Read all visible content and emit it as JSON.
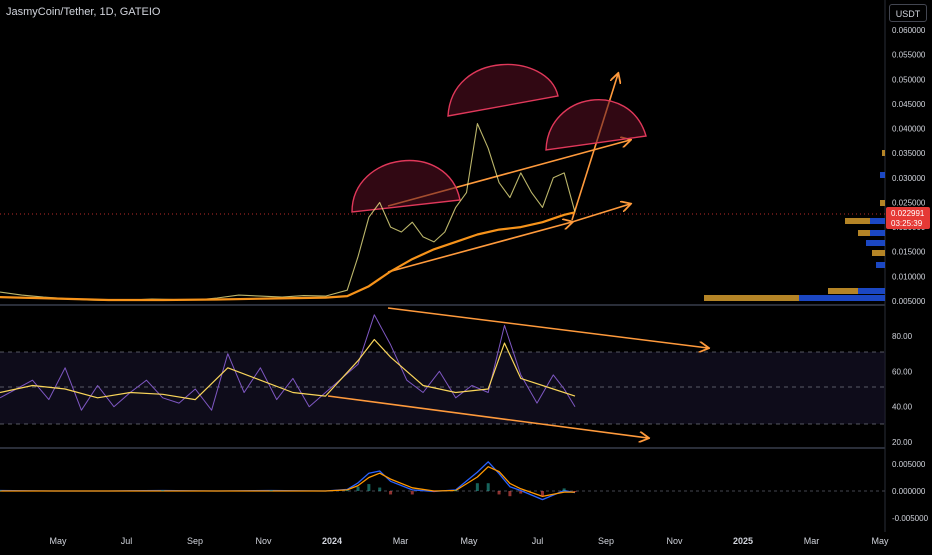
{
  "header": {
    "symbol_title": "JasmyCoin/Tether, 1D, GATEIO",
    "currency_button": "USDT"
  },
  "price_badge": {
    "price": "0.022991",
    "countdown": "03:25:39"
  },
  "colors": {
    "background": "#000000",
    "price_line": "#f9f18e",
    "ma_line": "#f7931a",
    "annotation_orange": "#ff9a3c",
    "head_arc": "#e0385a",
    "rsi_line": "#7e57c2",
    "rsi_signal": "#f9d55a",
    "macd_blue": "#2962ff",
    "macd_orange": "#ff9800",
    "price_badge": "#e53935",
    "volume_profile_gold": "#c8922a",
    "volume_profile_blue": "#1e4fd8"
  },
  "chart_data": [
    {
      "type": "line",
      "name": "price-pane",
      "y_ticks": [
        "0.060000",
        "0.055000",
        "0.050000",
        "0.045000",
        "0.040000",
        "0.035000",
        "0.030000",
        "0.025000",
        "0.020000",
        "0.015000",
        "0.010000",
        "0.005000"
      ],
      "ylim": [
        0.005,
        0.062
      ],
      "series": [
        {
          "role": "close",
          "x": [
            0,
            4,
            8,
            12,
            16,
            20,
            24,
            28,
            32,
            36,
            40,
            44,
            48,
            52,
            56,
            60,
            64,
            66,
            68,
            70,
            72,
            74,
            76,
            78,
            80,
            82,
            84,
            86,
            88,
            90,
            92,
            94,
            96,
            98,
            100,
            102,
            104,
            106
          ],
          "y": [
            0.0068,
            0.0062,
            0.0058,
            0.0055,
            0.0052,
            0.0051,
            0.0052,
            0.0054,
            0.0053,
            0.0052,
            0.0056,
            0.0062,
            0.006,
            0.0058,
            0.0061,
            0.006,
            0.0072,
            0.014,
            0.022,
            0.025,
            0.02,
            0.019,
            0.021,
            0.018,
            0.017,
            0.019,
            0.024,
            0.027,
            0.041,
            0.036,
            0.029,
            0.026,
            0.031,
            0.027,
            0.024,
            0.03,
            0.031,
            0.023
          ]
        },
        {
          "role": "moving-average",
          "x": [
            0,
            10,
            20,
            30,
            40,
            50,
            60,
            64,
            68,
            72,
            76,
            80,
            84,
            88,
            92,
            96,
            100,
            104,
            106
          ],
          "y": [
            0.0058,
            0.0055,
            0.0052,
            0.0052,
            0.0053,
            0.0055,
            0.0057,
            0.006,
            0.008,
            0.011,
            0.0135,
            0.0155,
            0.017,
            0.0185,
            0.0195,
            0.02,
            0.021,
            0.0225,
            0.023
          ]
        }
      ]
    },
    {
      "type": "line",
      "name": "rsi-pane",
      "y_ticks": [
        "80.00",
        "60.00",
        "40.00",
        "20.00"
      ],
      "ylim": [
        18,
        96
      ],
      "series": [
        {
          "role": "rsi",
          "x": [
            0,
            3,
            6,
            9,
            12,
            15,
            18,
            21,
            24,
            27,
            30,
            33,
            36,
            39,
            42,
            45,
            48,
            51,
            54,
            57,
            60,
            63,
            66,
            69,
            72,
            75,
            78,
            81,
            84,
            87,
            90,
            93,
            96,
            99,
            102,
            104,
            106
          ],
          "y": [
            45,
            50,
            55,
            44,
            62,
            38,
            52,
            40,
            48,
            55,
            45,
            42,
            50,
            38,
            70,
            48,
            62,
            44,
            56,
            40,
            48,
            56,
            64,
            92,
            75,
            55,
            48,
            60,
            45,
            52,
            48,
            86,
            58,
            42,
            58,
            50,
            40
          ]
        },
        {
          "role": "rsi-signal",
          "x": [
            0,
            6,
            12,
            18,
            24,
            30,
            36,
            42,
            48,
            54,
            60,
            66,
            69,
            72,
            78,
            84,
            90,
            93,
            96,
            102,
            106
          ],
          "y": [
            48,
            52,
            50,
            45,
            48,
            47,
            44,
            62,
            55,
            48,
            46,
            66,
            78,
            68,
            52,
            48,
            50,
            76,
            56,
            50,
            46
          ]
        }
      ]
    },
    {
      "type": "line",
      "name": "macd-pane",
      "y_ticks": [
        "0.005000",
        "0.000000",
        "-0.005000"
      ],
      "ylim": [
        -0.0068,
        0.0068
      ],
      "series": [
        {
          "role": "macd",
          "x": [
            0,
            10,
            20,
            30,
            40,
            50,
            60,
            64,
            66,
            68,
            70,
            72,
            76,
            80,
            84,
            88,
            90,
            92,
            94,
            96,
            100,
            104,
            106
          ],
          "y": [
            0.0001,
            0,
            0,
            0.0001,
            0,
            0.0001,
            0,
            0.0003,
            0.0015,
            0.0033,
            0.0037,
            0.0018,
            0.0002,
            -0.0001,
            0.0002,
            0.0035,
            0.0054,
            0.0032,
            0.0008,
            0.0001,
            -0.0016,
            0.0001,
            -0.0003
          ]
        },
        {
          "role": "signal",
          "x": [
            0,
            10,
            20,
            30,
            40,
            50,
            60,
            64,
            66,
            68,
            70,
            72,
            76,
            80,
            84,
            88,
            90,
            92,
            94,
            96,
            100,
            104,
            106
          ],
          "y": [
            0,
            0,
            0,
            0,
            0,
            0,
            0,
            0.0002,
            0.001,
            0.0025,
            0.0033,
            0.0022,
            0.0006,
            0,
            0.0001,
            0.0026,
            0.0045,
            0.0036,
            0.0014,
            0.0004,
            -0.001,
            -0.0002,
            -0.0002
          ]
        }
      ]
    }
  ],
  "x_axis": {
    "labels": [
      {
        "text": "May",
        "bold": false
      },
      {
        "text": "Jul",
        "bold": false
      },
      {
        "text": "Sep",
        "bold": false
      },
      {
        "text": "Nov",
        "bold": false
      },
      {
        "text": "2024",
        "bold": true
      },
      {
        "text": "Mar",
        "bold": false
      },
      {
        "text": "May",
        "bold": false
      },
      {
        "text": "Jul",
        "bold": false
      },
      {
        "text": "Sep",
        "bold": false
      },
      {
        "text": "Nov",
        "bold": false
      },
      {
        "text": "2025",
        "bold": true
      },
      {
        "text": "Mar",
        "bold": false
      },
      {
        "text": "May",
        "bold": false
      }
    ]
  }
}
